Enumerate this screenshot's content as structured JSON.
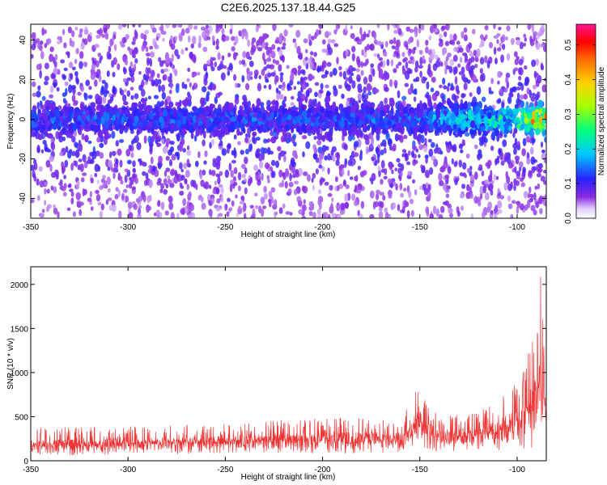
{
  "title": "C2E6.2025.137.18.44.G25",
  "chart_data": [
    {
      "type": "heatmap",
      "xlabel": "Height of straight line (km)",
      "ylabel": "Frequency (Hz)",
      "xlim": [
        -350,
        -85
      ],
      "ylim": [
        -50,
        48
      ],
      "xticks": [
        -350,
        -300,
        -250,
        -200,
        -150,
        -100
      ],
      "yticks": [
        -40,
        -20,
        0,
        20,
        40
      ],
      "colorbar": {
        "label": "Normalized spectral amplitude",
        "range": [
          0.0,
          0.56
        ],
        "ticks": [
          0.0,
          0.1,
          0.2,
          0.3,
          0.4,
          0.5
        ],
        "colormap": "white-purple-blue-cyan-green-yellow-orange-red-magenta"
      },
      "band_center_hz": 0,
      "band_halfwidth_hz": 8,
      "max_amplitude_near_x_km": -90
    },
    {
      "type": "line",
      "xlabel": "Height of straight line (km)",
      "ylabel": "SNR (10 * v/v)",
      "xlim": [
        -350,
        -85
      ],
      "ylim": [
        0,
        2200
      ],
      "xticks": [
        -350,
        -300,
        -250,
        -200,
        -150,
        -100
      ],
      "yticks": [
        0,
        500,
        1000,
        1500,
        2000
      ],
      "series_color": "#ee3333",
      "envelope": [
        {
          "x": -350,
          "low": 60,
          "high": 380
        },
        {
          "x": -300,
          "low": 70,
          "high": 390
        },
        {
          "x": -250,
          "low": 80,
          "high": 430
        },
        {
          "x": -200,
          "low": 80,
          "high": 500
        },
        {
          "x": -160,
          "low": 90,
          "high": 470
        },
        {
          "x": -152,
          "low": 150,
          "high": 850
        },
        {
          "x": -140,
          "low": 100,
          "high": 500
        },
        {
          "x": -120,
          "low": 110,
          "high": 560
        },
        {
          "x": -110,
          "low": 120,
          "high": 700
        },
        {
          "x": -100,
          "low": 100,
          "high": 900
        },
        {
          "x": -90,
          "low": 150,
          "high": 1500
        },
        {
          "x": -88,
          "low": 250,
          "high": 2200
        },
        {
          "x": -85,
          "low": 200,
          "high": 900
        }
      ]
    }
  ]
}
